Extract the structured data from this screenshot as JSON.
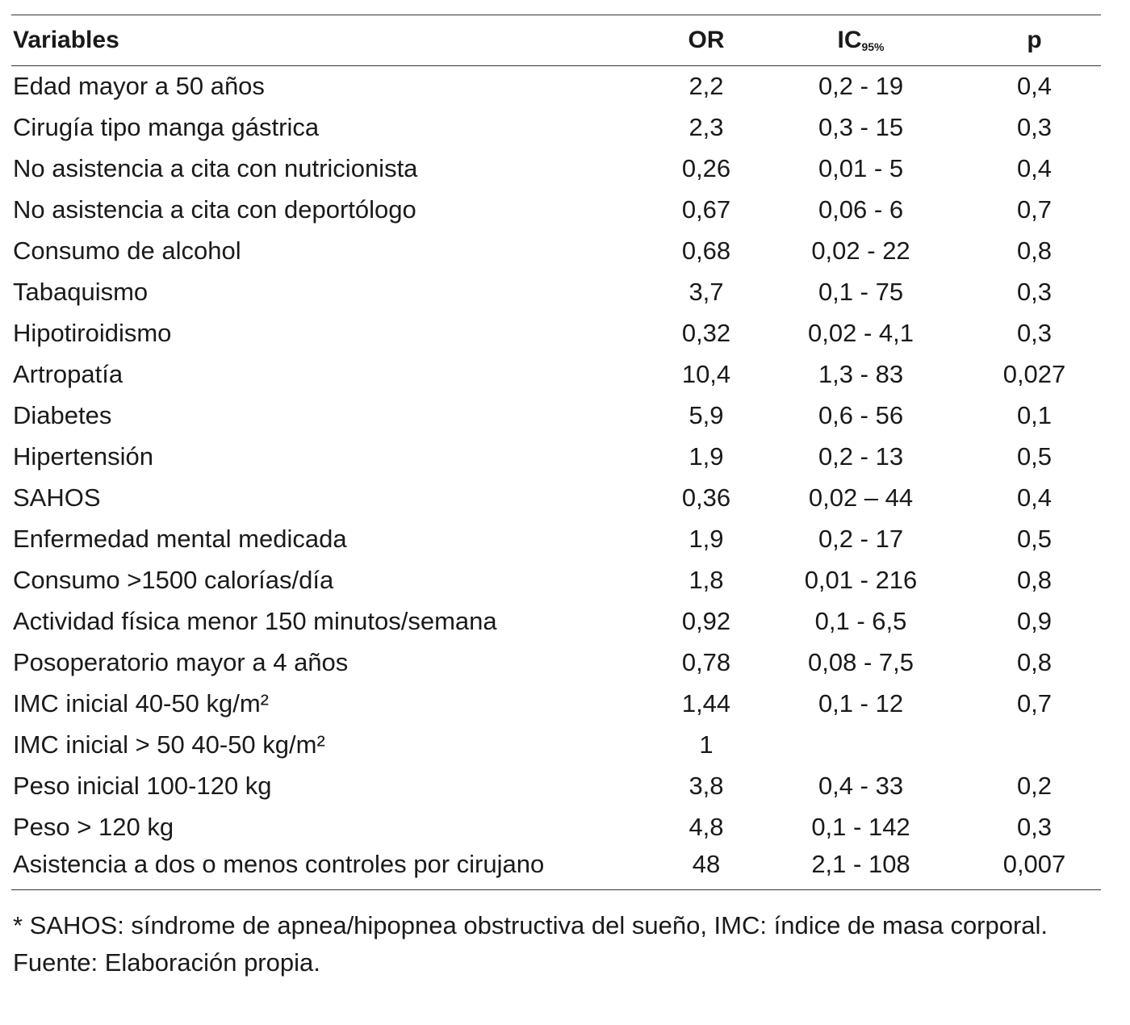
{
  "table": {
    "headers": {
      "variables": "Variables",
      "or": "OR",
      "ic": "IC",
      "ic_sub": "95%",
      "p": "p"
    },
    "rows": [
      {
        "variable": "Edad mayor a 50 años",
        "or": "2,2",
        "ic": "0,2 - 19",
        "p": "0,4"
      },
      {
        "variable": "Cirugía tipo manga gástrica",
        "or": "2,3",
        "ic": "0,3 - 15",
        "p": "0,3"
      },
      {
        "variable": "No asistencia a cita con nutricionista",
        "or": "0,26",
        "ic": "0,01 - 5",
        "p": "0,4"
      },
      {
        "variable": "No asistencia a cita con deportólogo",
        "or": "0,67",
        "ic": "0,06 - 6",
        "p": "0,7"
      },
      {
        "variable": "Consumo de alcohol",
        "or": "0,68",
        "ic": "0,02 - 22",
        "p": "0,8"
      },
      {
        "variable": "Tabaquismo",
        "or": "3,7",
        "ic": "0,1 - 75",
        "p": "0,3"
      },
      {
        "variable": "Hipotiroidismo",
        "or": "0,32",
        "ic": "0,02 - 4,1",
        "p": "0,3"
      },
      {
        "variable": "Artropatía",
        "or": "10,4",
        "ic": "1,3 - 83",
        "p": "0,027"
      },
      {
        "variable": "Diabetes",
        "or": "5,9",
        "ic": "0,6 - 56",
        "p": "0,1"
      },
      {
        "variable": "Hipertensión",
        "or": "1,9",
        "ic": "0,2 - 13",
        "p": "0,5"
      },
      {
        "variable": "SAHOS",
        "or": "0,36",
        "ic": "0,02 – 44",
        "p": "0,4"
      },
      {
        "variable": "Enfermedad mental medicada",
        "or": "1,9",
        "ic": "0,2 - 17",
        "p": "0,5"
      },
      {
        "variable": "Consumo >1500 calorías/día",
        "or": "1,8",
        "ic": "0,01 - 216",
        "p": "0,8"
      },
      {
        "variable": "Actividad física menor 150 minutos/semana",
        "or": "0,92",
        "ic": "0,1 - 6,5",
        "p": "0,9"
      },
      {
        "variable": "Posoperatorio mayor a 4 años",
        "or": "0,78",
        "ic": "0,08 - 7,5",
        "p": "0,8"
      },
      {
        "variable": "IMC inicial 40-50 kg/m²",
        "or": "1,44",
        "ic": "0,1 - 12",
        "p": "0,7"
      },
      {
        "variable": "IMC inicial > 50 40-50 kg/m²",
        "or": "1",
        "ic": "",
        "p": ""
      },
      {
        "variable": "Peso inicial 100-120 kg",
        "or": "3,8",
        "ic": "0,4 - 33",
        "p": "0,2"
      },
      {
        "variable": "Peso > 120 kg",
        "or": "4,8",
        "ic": "0,1 - 142",
        "p": "0,3"
      },
      {
        "variable": "Asistencia a dos o menos controles por cirujano",
        "or": "48",
        "ic": "2,1 - 108",
        "p": "0,007"
      }
    ]
  },
  "footnote": "* SAHOS: síndrome de apnea/hipopnea obstructiva del sueño, IMC: índice de masa corporal. Fuente: Elaboración propia."
}
